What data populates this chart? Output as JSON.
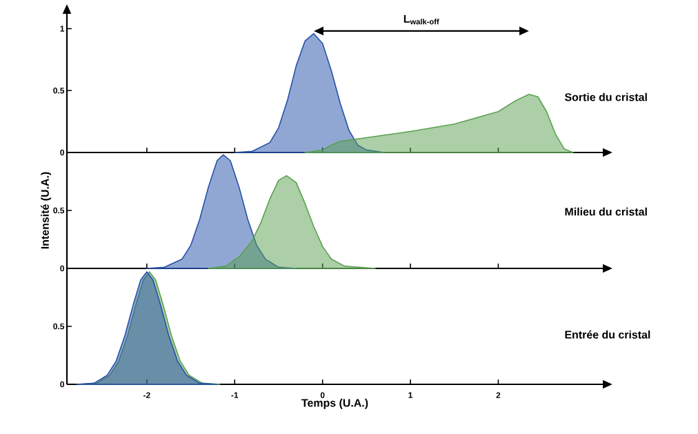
{
  "chart_data": [
    {
      "type": "area",
      "xlim": [
        -2.91,
        3.19
      ],
      "ylim": [
        0,
        1.12
      ],
      "xticks": [
        -2,
        -1,
        0,
        1,
        2
      ],
      "yticks": [
        0,
        0.5,
        1
      ],
      "tick_labels": "y",
      "annotations": [
        "Sortie du cristal",
        "L$_{walk-off}$"
      ],
      "series": [
        {
          "color": "#2450a8",
          "x": [
            -1.0,
            -0.8,
            -0.6,
            -0.5,
            -0.4,
            -0.3,
            -0.2,
            -0.1,
            0,
            0.1,
            0.2,
            0.3,
            0.4,
            0.5,
            0.7
          ],
          "values": [
            0,
            0.01,
            0.08,
            0.2,
            0.42,
            0.7,
            0.9,
            0.96,
            0.88,
            0.66,
            0.4,
            0.18,
            0.06,
            0.02,
            0
          ]
        },
        {
          "color": "#5aa050",
          "x": [
            -0.2,
            0,
            0.1,
            0.2,
            0.3,
            0.5,
            1.0,
            1.5,
            2.0,
            2.2,
            2.35,
            2.45,
            2.55,
            2.65,
            2.75,
            2.85
          ],
          "values": [
            0,
            0.02,
            0.06,
            0.09,
            0.1,
            0.12,
            0.17,
            0.23,
            0.33,
            0.42,
            0.47,
            0.45,
            0.33,
            0.15,
            0.03,
            0
          ]
        }
      ]
    },
    {
      "type": "area",
      "xlim": [
        -2.91,
        3.19
      ],
      "ylim": [
        0,
        1
      ],
      "xticks": [
        -2,
        -1,
        0,
        1,
        2
      ],
      "yticks": [
        0,
        0.5
      ],
      "tick_labels": "y",
      "ylabel": "Intensité (U.A.)",
      "annotations": [
        "Milieu du cristal"
      ],
      "series": [
        {
          "color": "#2450a8",
          "x": [
            -2,
            -1.8,
            -1.6,
            -1.5,
            -1.4,
            -1.3,
            -1.2,
            -1.13,
            -1.05,
            -0.95,
            -0.85,
            -0.75,
            -0.65,
            -0.5,
            -0.3
          ],
          "values": [
            0,
            0.01,
            0.08,
            0.2,
            0.42,
            0.7,
            0.93,
            0.98,
            0.93,
            0.7,
            0.42,
            0.2,
            0.08,
            0.01,
            0
          ]
        },
        {
          "color": "#5aa050",
          "x": [
            -1.3,
            -1.1,
            -0.95,
            -0.8,
            -0.7,
            -0.6,
            -0.5,
            -0.41,
            -0.3,
            -0.2,
            -0.1,
            0,
            0.1,
            0.25,
            0.6
          ],
          "values": [
            0,
            0.02,
            0.1,
            0.24,
            0.4,
            0.6,
            0.76,
            0.8,
            0.74,
            0.56,
            0.36,
            0.19,
            0.08,
            0.02,
            0
          ]
        }
      ]
    },
    {
      "type": "area",
      "xlim": [
        -2.91,
        3.19
      ],
      "ylim": [
        0,
        1
      ],
      "xticks": [
        -2,
        -1,
        0,
        1,
        2
      ],
      "yticks": [
        0,
        0.5
      ],
      "xlabel": "Temps (U.A.)",
      "annotations": [
        "Entrée du cristal"
      ],
      "series": [
        {
          "color": "#5aa050",
          "x": [
            -2.77,
            -2.57,
            -2.42,
            -2.32,
            -2.22,
            -2.12,
            -2.04,
            -1.97,
            -1.9,
            -1.82,
            -1.72,
            -1.62,
            -1.52,
            -1.37,
            -1.17
          ],
          "values": [
            0,
            0.01,
            0.08,
            0.2,
            0.42,
            0.7,
            0.9,
            0.97,
            0.9,
            0.7,
            0.42,
            0.2,
            0.08,
            0.01,
            0
          ]
        },
        {
          "color": "#2450a8",
          "x": [
            -2.8,
            -2.6,
            -2.45,
            -2.35,
            -2.25,
            -2.15,
            -2.07,
            -2.0,
            -1.93,
            -1.85,
            -1.75,
            -1.65,
            -1.55,
            -1.4,
            -1.2
          ],
          "values": [
            0,
            0.01,
            0.08,
            0.2,
            0.42,
            0.7,
            0.9,
            0.97,
            0.9,
            0.7,
            0.42,
            0.2,
            0.08,
            0.01,
            0
          ]
        }
      ]
    }
  ]
}
